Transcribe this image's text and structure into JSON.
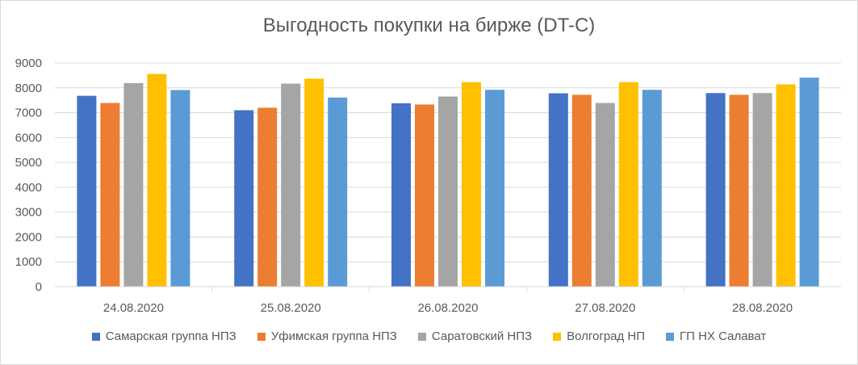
{
  "chart_data": {
    "type": "bar",
    "title": "Выгодность покупки на бирже (DT-C)",
    "categories": [
      "24.08.2020",
      "25.08.2020",
      "26.08.2020",
      "27.08.2020",
      "28.08.2020"
    ],
    "ylim": [
      0,
      9000
    ],
    "yticks": [
      0,
      1000,
      2000,
      3000,
      4000,
      5000,
      6000,
      7000,
      8000,
      9000
    ],
    "grid": true,
    "legend": "bottom",
    "series": [
      {
        "name": "Самарская группа НПЗ",
        "color": "#4472c4",
        "values": [
          7680,
          7100,
          7380,
          7780,
          7790
        ]
      },
      {
        "name": "Уфимская группа НПЗ",
        "color": "#ed7d31",
        "values": [
          7390,
          7200,
          7330,
          7720,
          7720
        ]
      },
      {
        "name": "Саратовский НПЗ",
        "color": "#a5a5a5",
        "values": [
          8190,
          8170,
          7650,
          7390,
          7790
        ]
      },
      {
        "name": "Волгоград НП",
        "color": "#ffc000",
        "values": [
          8560,
          8370,
          8230,
          8230,
          8140
        ]
      },
      {
        "name": "ГП НХ Салават",
        "color": "#5b9bd5",
        "values": [
          7910,
          7610,
          7920,
          7920,
          8410
        ]
      }
    ]
  }
}
